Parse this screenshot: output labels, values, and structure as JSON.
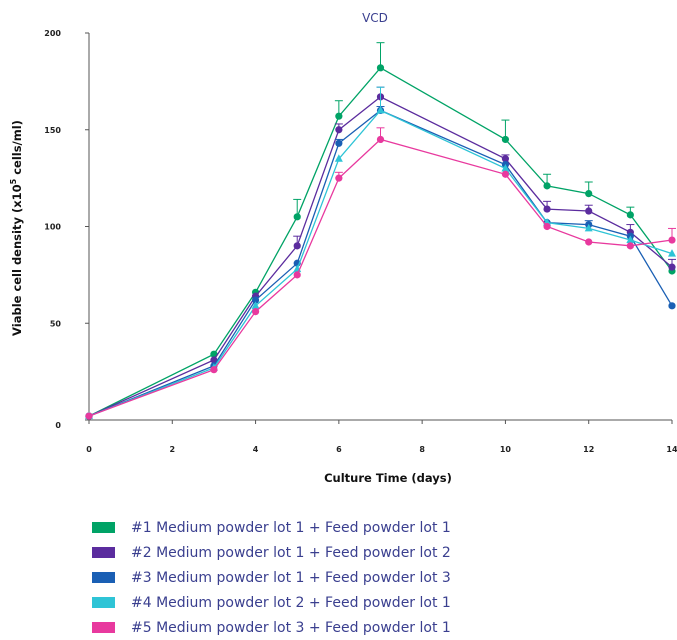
{
  "chart_data": {
    "type": "line",
    "title": "VCD",
    "xlabel": "Culture Time (days)",
    "ylabel": "Viable cell density (x10",
    "ylabel_sup": "5",
    "ylabel_end": " cells/ml)",
    "xlim": [
      0,
      14
    ],
    "ylim": [
      0,
      200
    ],
    "xticks": [
      0,
      2,
      4,
      6,
      8,
      10,
      12,
      14
    ],
    "yticks": [
      0,
      50,
      100,
      150,
      200
    ],
    "grid": false,
    "legend_position": "bottom",
    "x": [
      0,
      3,
      4,
      5,
      6,
      7,
      10,
      11,
      12,
      13,
      14
    ],
    "series": [
      {
        "name": "#1 Medium powder lot 1 + Feed powder lot 1",
        "color": "#00a366",
        "marker": "circle",
        "values": [
          2,
          34,
          66,
          105,
          157,
          182,
          145,
          121,
          117,
          106,
          77
        ],
        "err": [
          0,
          0,
          0,
          9,
          8,
          13,
          10,
          6,
          6,
          4,
          0
        ]
      },
      {
        "name": "#2 Medium powder lot 1 + Feed powder lot 2",
        "color": "#5b2c9e",
        "marker": "circle",
        "values": [
          2,
          31,
          64,
          90,
          150,
          167,
          135,
          109,
          108,
          97,
          79
        ],
        "err": [
          0,
          0,
          0,
          5,
          3,
          5,
          2,
          4,
          3,
          4,
          4
        ]
      },
      {
        "name": "#3 Medium powder lot 1 + Feed powder lot 3",
        "color": "#1a5fb4",
        "marker": "circle",
        "values": [
          2,
          28,
          62,
          81,
          143,
          160,
          132,
          102,
          101,
          95,
          59
        ],
        "err": [
          0,
          0,
          0,
          0,
          2,
          2,
          0,
          0,
          2,
          0,
          0
        ]
      },
      {
        "name": "#4 Medium powder lot 2 + Feed powder lot 1",
        "color": "#2ec4d6",
        "marker": "triangle",
        "values": [
          2,
          27,
          59,
          78,
          135,
          160,
          130,
          102,
          99,
          93,
          86
        ],
        "err": [
          0,
          0,
          0,
          0,
          0,
          12,
          0,
          0,
          0,
          0,
          0
        ]
      },
      {
        "name": "#5 Medium powder lot 3 + Feed powder lot 1",
        "color": "#e8399e",
        "marker": "circle",
        "values": [
          2,
          26,
          56,
          75,
          125,
          145,
          127,
          100,
          92,
          90,
          93
        ],
        "err": [
          0,
          0,
          0,
          0,
          3,
          6,
          0,
          0,
          0,
          0,
          6
        ]
      }
    ]
  }
}
